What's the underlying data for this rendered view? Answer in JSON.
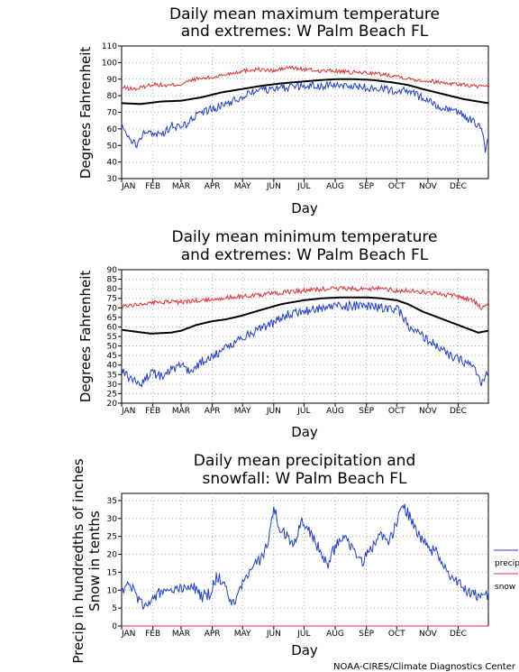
{
  "credit": "NOAA-CIRES/Climate Diagnostics Center",
  "chart_data": [
    {
      "type": "line",
      "title_lines": [
        "Daily mean maximum temperature",
        "and extremes: W Palm Beach FL"
      ],
      "xlabel": "Day",
      "ylabel": "Degrees Fahrenheit",
      "ylim": [
        30,
        110
      ],
      "yticks": [
        30,
        40,
        50,
        60,
        70,
        80,
        90,
        100,
        110
      ],
      "months": [
        "JAN",
        "FEB",
        "MAR",
        "APR",
        "MAY",
        "JUN",
        "JUL",
        "AUG",
        "SEP",
        "OCT",
        "NOV",
        "DEC"
      ],
      "grid": true,
      "series": [
        {
          "key": "extreme_high",
          "color": "#e03030",
          "x": [
            1,
            15,
            32,
            46,
            60,
            74,
            91,
            105,
            121,
            135,
            152,
            166,
            182,
            196,
            213,
            227,
            244,
            258,
            274,
            288,
            305,
            319,
            335,
            349,
            365
          ],
          "values": [
            85,
            84,
            87,
            86,
            87,
            90,
            91,
            93,
            95,
            96,
            95,
            97,
            96,
            95,
            95,
            94,
            94,
            93,
            92,
            90,
            89,
            88,
            87,
            86,
            85
          ]
        },
        {
          "key": "mean",
          "color": "#000000",
          "x": [
            1,
            20,
            40,
            60,
            80,
            100,
            120,
            140,
            160,
            180,
            200,
            215,
            230,
            250,
            270,
            285,
            300,
            320,
            340,
            365
          ],
          "values": [
            75.5,
            75,
            76.5,
            77,
            79,
            82,
            84,
            86,
            87.5,
            88.5,
            89.5,
            90,
            90,
            89.5,
            88,
            86.5,
            84,
            81,
            78,
            75.5
          ]
        },
        {
          "key": "extreme_low",
          "color": "#1f3fd0",
          "x": [
            1,
            8,
            15,
            22,
            32,
            40,
            50,
            60,
            70,
            80,
            91,
            100,
            110,
            121,
            130,
            140,
            152,
            165,
            182,
            200,
            213,
            222,
            230,
            244,
            258,
            274,
            284,
            295,
            305,
            315,
            325,
            335,
            345,
            352,
            358,
            362,
            365
          ],
          "values": [
            62,
            55,
            50,
            57,
            58,
            56,
            62,
            60,
            66,
            70,
            72,
            74,
            76,
            80,
            82,
            83,
            84,
            85,
            86,
            86,
            86,
            87,
            86,
            85,
            84,
            83,
            83,
            80,
            77,
            74,
            72,
            70,
            66,
            64,
            60,
            48,
            55
          ]
        }
      ]
    },
    {
      "type": "line",
      "title_lines": [
        "Daily mean minimum temperature",
        "and extremes: W Palm Beach FL"
      ],
      "xlabel": "Day",
      "ylabel": "Degrees Fahrenheit",
      "ylim": [
        20,
        90
      ],
      "yticks": [
        20,
        25,
        30,
        35,
        40,
        45,
        50,
        55,
        60,
        65,
        70,
        75,
        80,
        85,
        90
      ],
      "months": [
        "JAN",
        "FEB",
        "MAR",
        "APR",
        "MAY",
        "JUN",
        "JUL",
        "AUG",
        "SEP",
        "OCT",
        "NOV",
        "DEC"
      ],
      "grid": true,
      "series": [
        {
          "key": "extreme_high",
          "color": "#e03030",
          "x": [
            1,
            20,
            40,
            60,
            80,
            100,
            121,
            140,
            160,
            182,
            200,
            220,
            240,
            260,
            274,
            290,
            305,
            320,
            335,
            350,
            358,
            365
          ],
          "values": [
            71,
            72,
            73,
            73,
            74,
            75,
            76,
            77,
            78,
            79,
            80,
            80,
            80,
            80,
            79,
            79,
            78,
            77,
            76,
            74,
            70,
            73
          ]
        },
        {
          "key": "mean",
          "color": "#000000",
          "x": [
            1,
            15,
            30,
            50,
            60,
            75,
            91,
            105,
            121,
            140,
            160,
            182,
            200,
            220,
            244,
            258,
            274,
            285,
            300,
            315,
            330,
            345,
            355,
            365
          ],
          "values": [
            58.5,
            57.5,
            56.5,
            57,
            58,
            61,
            63,
            64,
            66,
            69,
            72,
            74,
            75,
            75.5,
            75.5,
            75,
            74,
            72,
            68,
            65,
            62,
            59,
            57,
            58
          ]
        },
        {
          "key": "extreme_low",
          "color": "#1f3fd0",
          "x": [
            1,
            10,
            20,
            30,
            40,
            50,
            60,
            70,
            80,
            91,
            100,
            110,
            121,
            135,
            152,
            165,
            182,
            200,
            213,
            230,
            244,
            258,
            274,
            280,
            288,
            295,
            305,
            315,
            325,
            335,
            345,
            352,
            358,
            365
          ],
          "values": [
            38,
            32,
            30,
            36,
            34,
            38,
            40,
            36,
            42,
            44,
            48,
            50,
            55,
            58,
            62,
            67,
            68,
            70,
            71,
            71,
            71,
            70,
            69,
            66,
            58,
            57,
            53,
            50,
            45,
            43,
            41,
            38,
            30,
            36
          ]
        }
      ]
    },
    {
      "type": "line",
      "title_lines": [
        "Daily mean precipitation and",
        "snowfall: W Palm Beach FL"
      ],
      "xlabel": "Day",
      "ylabel_lines": [
        "Precip in hundredths of inches",
        "Snow in tenths"
      ],
      "ylim": [
        0,
        37
      ],
      "yticks": [
        0,
        5,
        10,
        15,
        20,
        25,
        30,
        35
      ],
      "months": [
        "JAN",
        "FEB",
        "MAR",
        "APR",
        "MAY",
        "JUN",
        "JUL",
        "AUG",
        "SEP",
        "OCT",
        "NOV",
        "DEC"
      ],
      "grid": true,
      "legend": [
        {
          "label": "precip",
          "color": "#1f3fd0"
        },
        {
          "label": "snow",
          "color": "#e03030"
        }
      ],
      "legend_position": "right",
      "series": [
        {
          "key": "precip",
          "color": "#1f3fd0",
          "x": [
            1,
            8,
            14,
            22,
            30,
            38,
            45,
            55,
            62,
            70,
            80,
            88,
            96,
            105,
            112,
            121,
            130,
            140,
            147,
            152,
            158,
            165,
            172,
            180,
            188,
            196,
            205,
            213,
            222,
            232,
            240,
            248,
            258,
            266,
            274,
            280,
            288,
            296,
            305,
            315,
            325,
            335,
            342,
            350,
            358,
            365
          ],
          "values": [
            10,
            12,
            9,
            6,
            7,
            9,
            10,
            11,
            10,
            12,
            8,
            9,
            14,
            10,
            6,
            12,
            16,
            19,
            24,
            33,
            27,
            25,
            22,
            30,
            26,
            22,
            17,
            22,
            26,
            20,
            18,
            21,
            26,
            23,
            29,
            34,
            30,
            25,
            22,
            20,
            15,
            12,
            10,
            9,
            8,
            9
          ]
        },
        {
          "key": "snow",
          "color": "#e03030",
          "x": [
            1,
            365
          ],
          "values": [
            0,
            0
          ]
        }
      ]
    }
  ]
}
